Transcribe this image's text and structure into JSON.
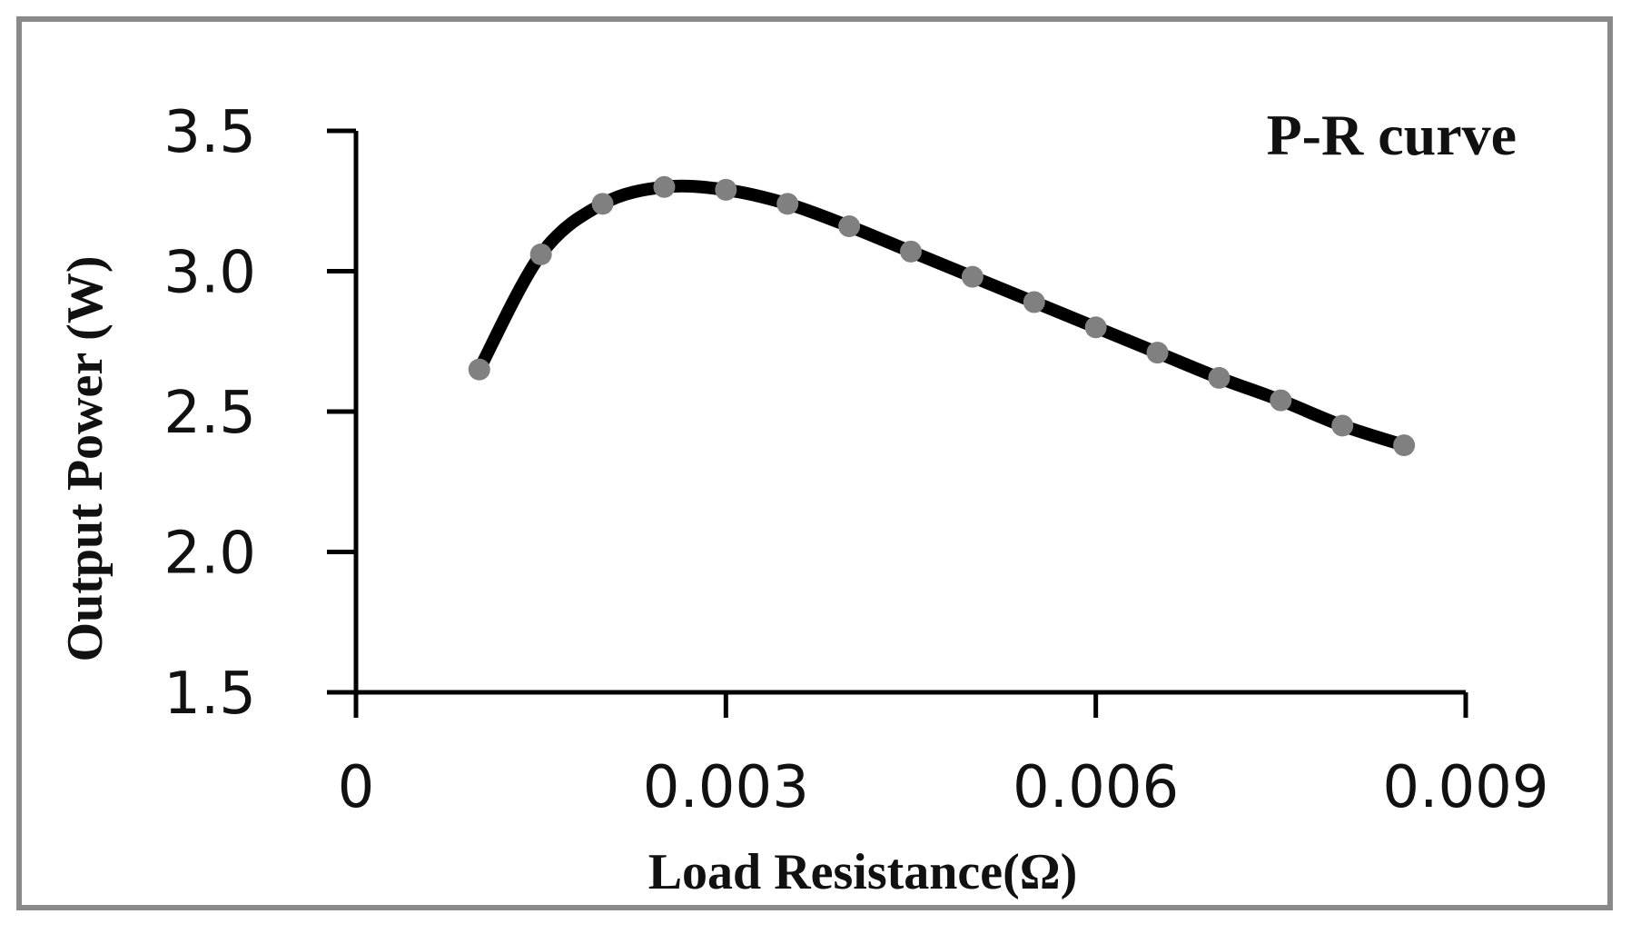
{
  "chart_data": {
    "type": "line",
    "title": "P-R curve",
    "xlabel": "Load Resistance(Ω)",
    "ylabel": "Output Power (W)",
    "xlim": [
      0,
      0.009
    ],
    "ylim": [
      1.5,
      3.5
    ],
    "x_ticks": [
      "0",
      "0.003",
      "0.006",
      "0.009"
    ],
    "y_ticks": [
      "1.5",
      "2.0",
      "2.5",
      "3.0",
      "3.5"
    ],
    "grid": false,
    "legend": "none",
    "line_color": "#000000",
    "marker_color": "#808080",
    "series": [
      {
        "x": [
          0.001,
          0.0015,
          0.002,
          0.0025,
          0.003,
          0.0035,
          0.004,
          0.0045,
          0.005,
          0.0055,
          0.006,
          0.0065,
          0.007,
          0.0075,
          0.008,
          0.0085
        ],
        "y": [
          2.65,
          3.06,
          3.24,
          3.3,
          3.29,
          3.24,
          3.16,
          3.07,
          2.98,
          2.89,
          2.8,
          2.71,
          2.62,
          2.54,
          2.45,
          2.38
        ]
      }
    ]
  }
}
